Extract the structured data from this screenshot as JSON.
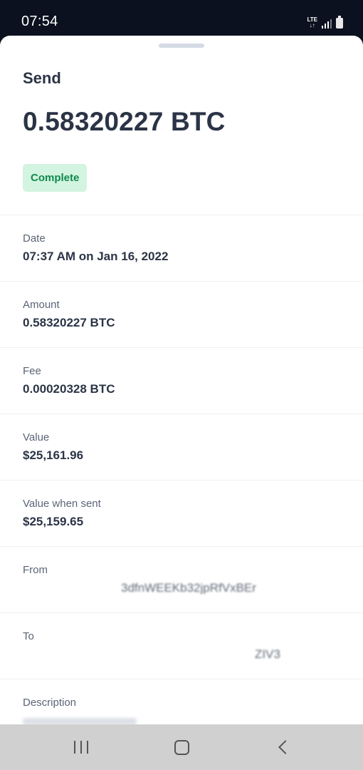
{
  "status_bar": {
    "time": "07:54",
    "network": "LTE",
    "signal_level": 0.75
  },
  "sheet": {
    "title": "Send",
    "amount": "0.58320227 BTC",
    "status": "Complete",
    "status_color": "#0f8a4c",
    "status_bg": "#d3f4e0"
  },
  "details": {
    "date": {
      "label": "Date",
      "value": "07:37 AM on Jan 16, 2022"
    },
    "amount": {
      "label": "Amount",
      "value": "0.58320227 BTC"
    },
    "fee": {
      "label": "Fee",
      "value": "0.00020328 BTC"
    },
    "value": {
      "label": "Value",
      "value": "$25,161.96"
    },
    "value_when_sent": {
      "label": "Value when sent",
      "value": "$25,159.65"
    },
    "from": {
      "label": "From",
      "value": "3dfnWEEKb32jpRfVxBEr"
    },
    "to": {
      "label": "To",
      "value": "ZIV3"
    },
    "description": {
      "label": "Description"
    }
  },
  "colors": {
    "text_primary": "#2b3446",
    "text_secondary": "#5b6576",
    "divider": "#edf0f4"
  },
  "nav": {
    "recents_icon": "recents-icon",
    "home_icon": "home-icon",
    "back_icon": "back-icon"
  }
}
